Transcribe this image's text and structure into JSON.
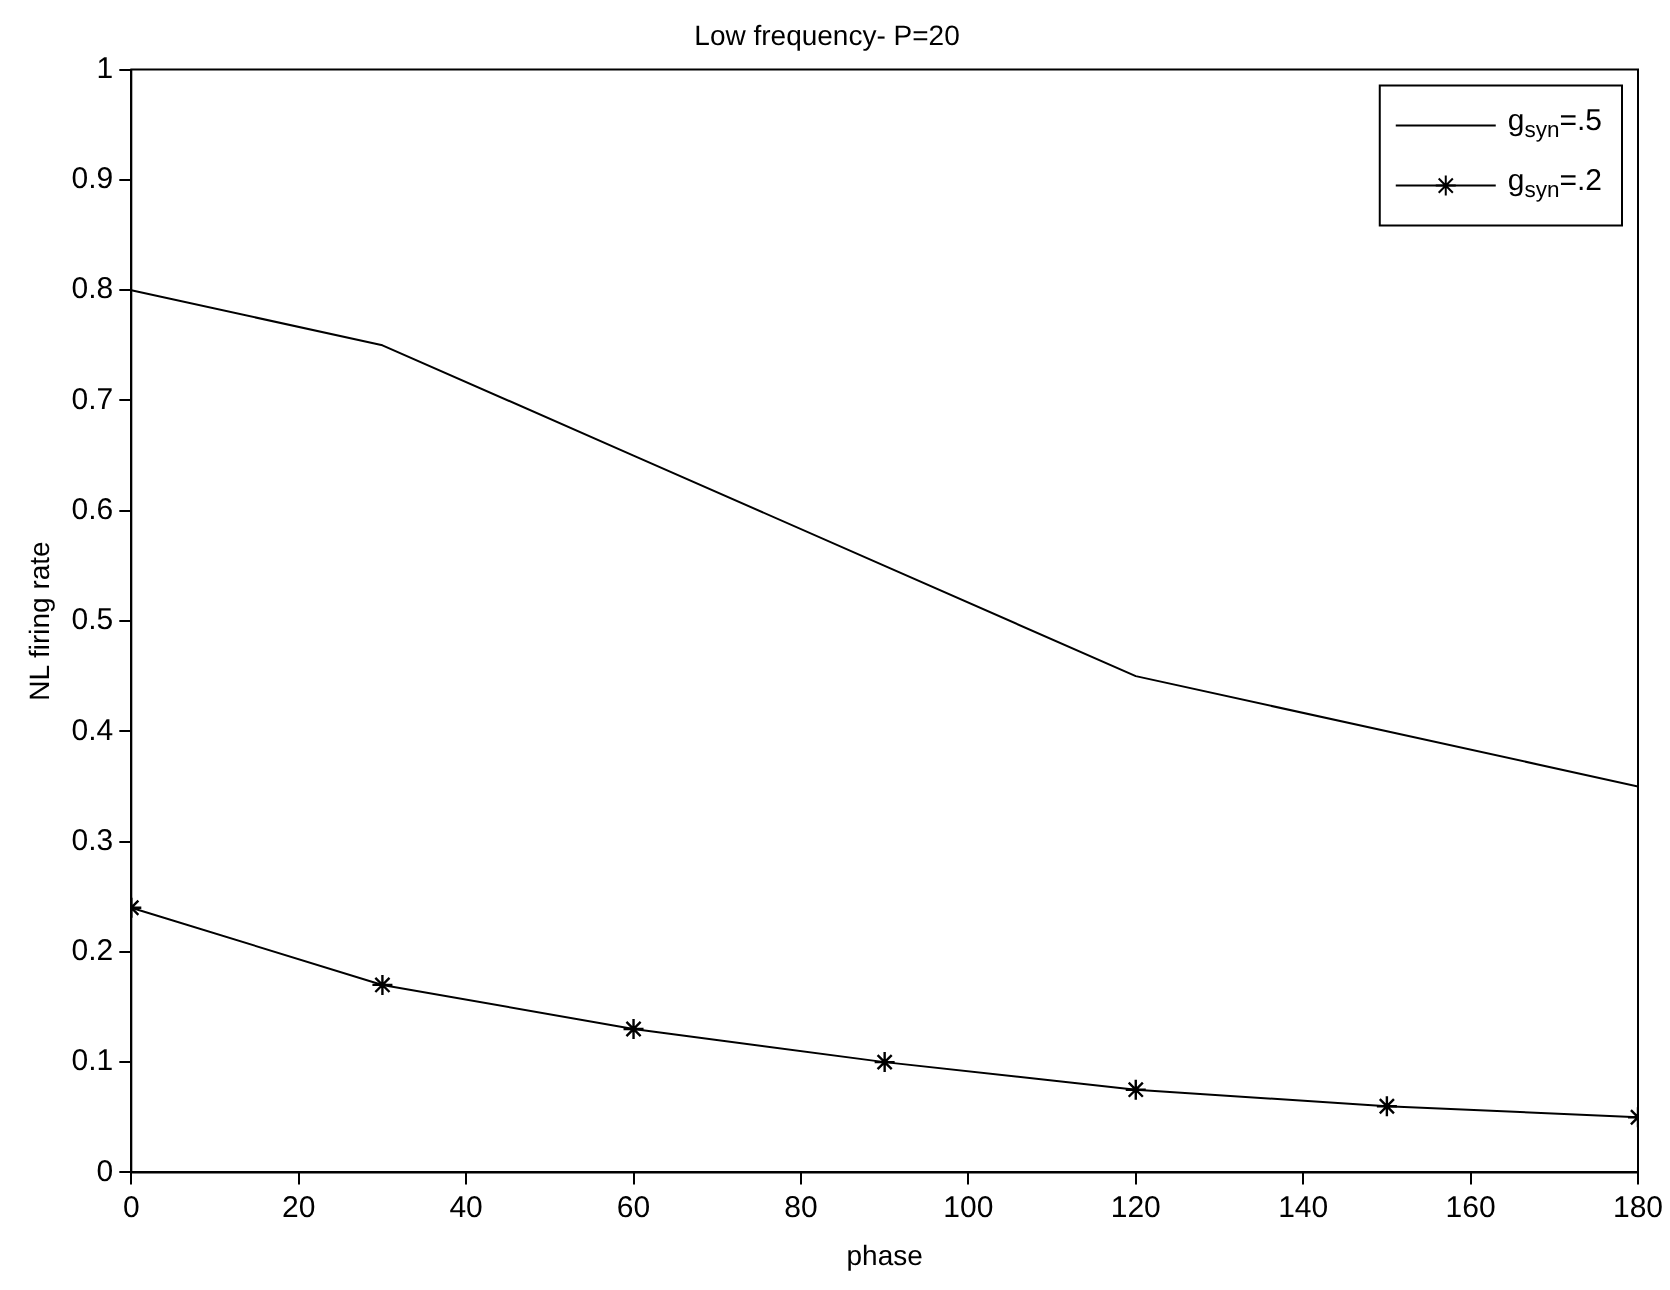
{
  "chart_data": {
    "type": "line",
    "title": "Low frequency- P=20",
    "xlabel": "phase",
    "ylabel": "NL firing rate",
    "x": [
      0,
      30,
      60,
      90,
      120,
      150,
      180
    ],
    "xlim": [
      0,
      180
    ],
    "xticks": [
      0,
      20,
      40,
      60,
      80,
      100,
      120,
      140,
      160,
      180
    ],
    "ylim": [
      0,
      1
    ],
    "yticks": [
      0,
      0.1,
      0.2,
      0.3,
      0.4,
      0.5,
      0.6,
      0.7,
      0.8,
      0.9,
      1
    ],
    "grid": false,
    "legend": "top right",
    "line_style": "solid",
    "series": [
      {
        "name": "g$_{syn}$=.5",
        "color": "#000000",
        "marker": "none",
        "values": [
          0.8,
          0.75,
          0.65,
          0.55,
          0.45,
          0.4,
          0.35
        ]
      },
      {
        "name": "g$_{syn}$=.2",
        "color": "#000000",
        "marker": "cross",
        "values": [
          0.24,
          0.17,
          0.13,
          0.1,
          0.075,
          0.06,
          0.05
        ]
      }
    ]
  }
}
